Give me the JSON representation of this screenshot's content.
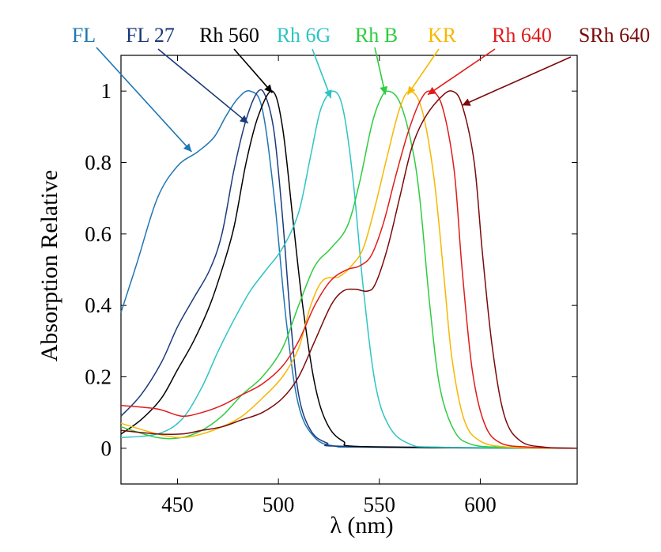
{
  "chart_data": {
    "type": "line",
    "title": "",
    "xlabel": "λ (nm)",
    "ylabel": "Absorption Relative",
    "xlim": [
      422,
      648
    ],
    "ylim": [
      -0.1,
      1.1
    ],
    "xticks": [
      450,
      500,
      550,
      600
    ],
    "yticks": [
      0,
      0.2,
      0.4,
      0.6,
      0.8,
      1
    ],
    "ytick_labels": [
      "0",
      "0.2",
      "0.4",
      "0.6",
      "0.8",
      "1"
    ],
    "grid": false,
    "series": [
      {
        "name": "FL",
        "color": "#1f77b4",
        "label_anchor": [
          457,
          0.83
        ],
        "points": [
          [
            422,
            0.38
          ],
          [
            430,
            0.52
          ],
          [
            440,
            0.7
          ],
          [
            450,
            0.79
          ],
          [
            460,
            0.83
          ],
          [
            468,
            0.87
          ],
          [
            474,
            0.93
          ],
          [
            480,
            0.98
          ],
          [
            486,
            1.0
          ],
          [
            492,
            0.95
          ],
          [
            498,
            0.7
          ],
          [
            504,
            0.35
          ],
          [
            510,
            0.12
          ],
          [
            518,
            0.03
          ],
          [
            528,
            0.006
          ],
          [
            545,
            0.003
          ],
          [
            648,
            0.0
          ]
        ]
      },
      {
        "name": "FL 27",
        "color": "#1b3a7a",
        "label_anchor": [
          485,
          0.91
        ],
        "points": [
          [
            422,
            0.09
          ],
          [
            432,
            0.15
          ],
          [
            442,
            0.24
          ],
          [
            450,
            0.34
          ],
          [
            458,
            0.42
          ],
          [
            466,
            0.5
          ],
          [
            472,
            0.6
          ],
          [
            478,
            0.78
          ],
          [
            484,
            0.92
          ],
          [
            490,
            1.0
          ],
          [
            494,
            0.98
          ],
          [
            498,
            0.88
          ],
          [
            502,
            0.65
          ],
          [
            506,
            0.36
          ],
          [
            510,
            0.15
          ],
          [
            516,
            0.05
          ],
          [
            524,
            0.015
          ],
          [
            535,
            0.005
          ],
          [
            648,
            0.0
          ]
        ]
      },
      {
        "name": "Rh 560",
        "color": "#000000",
        "label_anchor": [
          497,
          0.995
        ],
        "points": [
          [
            422,
            0.04
          ],
          [
            432,
            0.08
          ],
          [
            442,
            0.14
          ],
          [
            450,
            0.22
          ],
          [
            458,
            0.3
          ],
          [
            466,
            0.4
          ],
          [
            472,
            0.5
          ],
          [
            478,
            0.62
          ],
          [
            484,
            0.8
          ],
          [
            490,
            0.93
          ],
          [
            497,
            1.0
          ],
          [
            502,
            0.9
          ],
          [
            507,
            0.65
          ],
          [
            512,
            0.4
          ],
          [
            518,
            0.18
          ],
          [
            524,
            0.07
          ],
          [
            532,
            0.02
          ],
          [
            545,
            0.004
          ],
          [
            648,
            0.0
          ]
        ]
      },
      {
        "name": "Rh 6G",
        "color": "#2ec4c4",
        "label_anchor": [
          526,
          0.98
        ],
        "points": [
          [
            422,
            0.03
          ],
          [
            440,
            0.04
          ],
          [
            452,
            0.08
          ],
          [
            462,
            0.17
          ],
          [
            470,
            0.27
          ],
          [
            478,
            0.36
          ],
          [
            486,
            0.44
          ],
          [
            494,
            0.5
          ],
          [
            502,
            0.56
          ],
          [
            510,
            0.66
          ],
          [
            516,
            0.82
          ],
          [
            521,
            0.95
          ],
          [
            527,
            1.0
          ],
          [
            532,
            0.95
          ],
          [
            537,
            0.75
          ],
          [
            542,
            0.45
          ],
          [
            548,
            0.18
          ],
          [
            555,
            0.06
          ],
          [
            565,
            0.012
          ],
          [
            580,
            0.003
          ],
          [
            648,
            0.0
          ]
        ]
      },
      {
        "name": "Rh B",
        "color": "#2ecc40",
        "label_anchor": [
          553,
          0.99
        ],
        "points": [
          [
            422,
            0.06
          ],
          [
            440,
            0.03
          ],
          [
            452,
            0.03
          ],
          [
            462,
            0.05
          ],
          [
            472,
            0.09
          ],
          [
            482,
            0.15
          ],
          [
            492,
            0.2
          ],
          [
            502,
            0.28
          ],
          [
            510,
            0.4
          ],
          [
            518,
            0.51
          ],
          [
            526,
            0.56
          ],
          [
            534,
            0.62
          ],
          [
            540,
            0.74
          ],
          [
            546,
            0.9
          ],
          [
            550,
            0.97
          ],
          [
            554,
            1.0
          ],
          [
            560,
            0.97
          ],
          [
            566,
            0.85
          ],
          [
            570,
            0.7
          ],
          [
            575,
            0.4
          ],
          [
            580,
            0.17
          ],
          [
            587,
            0.05
          ],
          [
            595,
            0.012
          ],
          [
            610,
            0.003
          ],
          [
            648,
            0.0
          ]
        ]
      },
      {
        "name": "KR",
        "color": "#f5b800",
        "label_anchor": [
          564,
          0.99
        ],
        "points": [
          [
            422,
            0.07
          ],
          [
            440,
            0.04
          ],
          [
            452,
            0.03
          ],
          [
            462,
            0.04
          ],
          [
            472,
            0.06
          ],
          [
            482,
            0.09
          ],
          [
            492,
            0.14
          ],
          [
            502,
            0.2
          ],
          [
            510,
            0.28
          ],
          [
            516,
            0.4
          ],
          [
            522,
            0.47
          ],
          [
            530,
            0.48
          ],
          [
            536,
            0.51
          ],
          [
            542,
            0.56
          ],
          [
            548,
            0.68
          ],
          [
            554,
            0.82
          ],
          [
            560,
            0.95
          ],
          [
            565,
            1.0
          ],
          [
            571,
            0.95
          ],
          [
            577,
            0.76
          ],
          [
            582,
            0.48
          ],
          [
            586,
            0.25
          ],
          [
            592,
            0.08
          ],
          [
            600,
            0.02
          ],
          [
            615,
            0.003
          ],
          [
            648,
            0.0
          ]
        ]
      },
      {
        "name": "Rh 640",
        "color": "#e01b1b",
        "label_anchor": [
          574,
          0.99
        ],
        "points": [
          [
            422,
            0.12
          ],
          [
            440,
            0.11
          ],
          [
            452,
            0.09
          ],
          [
            462,
            0.1
          ],
          [
            472,
            0.12
          ],
          [
            482,
            0.15
          ],
          [
            492,
            0.18
          ],
          [
            502,
            0.23
          ],
          [
            510,
            0.3
          ],
          [
            518,
            0.4
          ],
          [
            526,
            0.47
          ],
          [
            534,
            0.5
          ],
          [
            540,
            0.51
          ],
          [
            546,
            0.54
          ],
          [
            552,
            0.63
          ],
          [
            558,
            0.76
          ],
          [
            564,
            0.88
          ],
          [
            570,
            0.97
          ],
          [
            575,
            1.0
          ],
          [
            581,
            0.96
          ],
          [
            587,
            0.78
          ],
          [
            591,
            0.5
          ],
          [
            596,
            0.22
          ],
          [
            602,
            0.07
          ],
          [
            610,
            0.015
          ],
          [
            625,
            0.003
          ],
          [
            648,
            0.0
          ]
        ]
      },
      {
        "name": "SRh 640",
        "color": "#7a0a0a",
        "label_anchor": [
          591,
          0.96
        ],
        "points": [
          [
            422,
            0.05
          ],
          [
            440,
            0.04
          ],
          [
            452,
            0.04
          ],
          [
            462,
            0.05
          ],
          [
            472,
            0.06
          ],
          [
            482,
            0.08
          ],
          [
            492,
            0.1
          ],
          [
            502,
            0.14
          ],
          [
            510,
            0.2
          ],
          [
            518,
            0.3
          ],
          [
            526,
            0.4
          ],
          [
            532,
            0.44
          ],
          [
            538,
            0.445
          ],
          [
            544,
            0.44
          ],
          [
            548,
            0.46
          ],
          [
            554,
            0.56
          ],
          [
            560,
            0.7
          ],
          [
            566,
            0.84
          ],
          [
            572,
            0.92
          ],
          [
            580,
            0.98
          ],
          [
            586,
            1.0
          ],
          [
            591,
            0.96
          ],
          [
            597,
            0.8
          ],
          [
            601,
            0.55
          ],
          [
            606,
            0.28
          ],
          [
            612,
            0.09
          ],
          [
            620,
            0.02
          ],
          [
            632,
            0.003
          ],
          [
            648,
            0.0
          ]
        ]
      }
    ],
    "legend": {
      "placement": "top",
      "entries": [
        "FL",
        "FL 27",
        "Rh 560",
        "Rh 6G",
        "Rh B",
        "KR",
        "Rh 640",
        "SRh 640"
      ]
    }
  }
}
